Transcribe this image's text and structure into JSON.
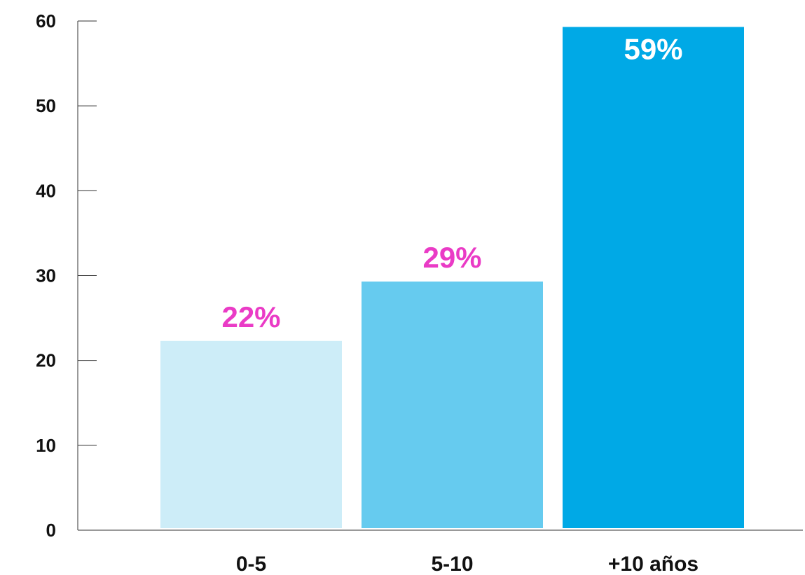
{
  "chart_data": {
    "type": "bar",
    "title": "",
    "xlabel": "",
    "ylabel": "",
    "categories": [
      "0-5",
      "5-10",
      "+10 años"
    ],
    "values": [
      22.3,
      29.3,
      59.3
    ],
    "data_labels": [
      "22%",
      "29%",
      "59%"
    ],
    "bar_colors": [
      "#cdedf8",
      "#66cbef",
      "#00a9e6"
    ],
    "data_label_colors": [
      "#ea3bc6",
      "#ea3bc6",
      "#ffffff"
    ],
    "data_label_position": [
      "outside",
      "outside",
      "inside"
    ],
    "ylim": [
      0,
      60
    ],
    "yticks": [
      0,
      10,
      20,
      30,
      40,
      50,
      60
    ],
    "grid": false,
    "legend": "none"
  }
}
